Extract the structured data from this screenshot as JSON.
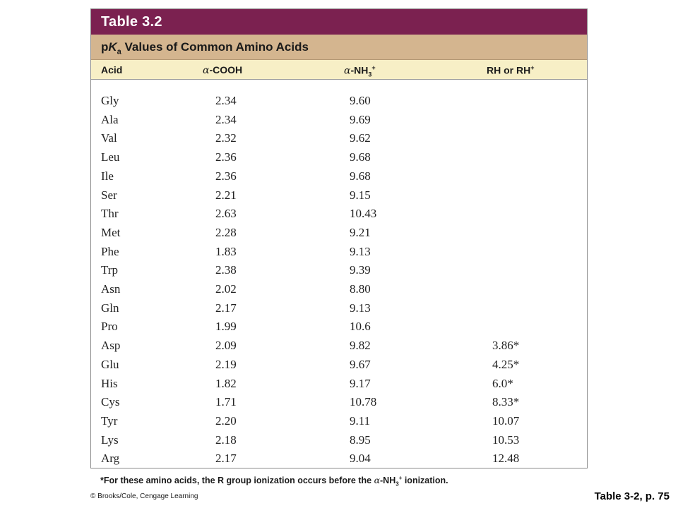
{
  "table": {
    "number": "Table 3.2",
    "subtitle_prefix": "p",
    "subtitle_k": "K",
    "subtitle_sub": "a",
    "subtitle_rest": " Values of Common Amino Acids",
    "headers": {
      "acid": "Acid",
      "cooh_greek": "α",
      "cooh_rest": "-COOH",
      "nh3_greek": "α",
      "nh3_rest": "-NH",
      "nh3_sub": "3",
      "nh3_sup": "+",
      "rh_text": "RH or RH",
      "rh_sup": "+"
    },
    "rows": [
      {
        "acid": "Gly",
        "cooh": "2.34",
        "nh3": "9.60",
        "rh": ""
      },
      {
        "acid": "Ala",
        "cooh": "2.34",
        "nh3": "9.69",
        "rh": ""
      },
      {
        "acid": "Val",
        "cooh": "2.32",
        "nh3": "9.62",
        "rh": ""
      },
      {
        "acid": "Leu",
        "cooh": "2.36",
        "nh3": "9.68",
        "rh": ""
      },
      {
        "acid": "Ile",
        "cooh": "2.36",
        "nh3": "9.68",
        "rh": ""
      },
      {
        "acid": "Ser",
        "cooh": "2.21",
        "nh3": "9.15",
        "rh": ""
      },
      {
        "acid": "Thr",
        "cooh": "2.63",
        "nh3": "10.43",
        "rh": ""
      },
      {
        "acid": "Met",
        "cooh": "2.28",
        "nh3": "9.21",
        "rh": ""
      },
      {
        "acid": "Phe",
        "cooh": "1.83",
        "nh3": "9.13",
        "rh": ""
      },
      {
        "acid": "Trp",
        "cooh": "2.38",
        "nh3": "9.39",
        "rh": ""
      },
      {
        "acid": "Asn",
        "cooh": "2.02",
        "nh3": "8.80",
        "rh": ""
      },
      {
        "acid": "Gln",
        "cooh": "2.17",
        "nh3": "9.13",
        "rh": ""
      },
      {
        "acid": "Pro",
        "cooh": "1.99",
        "nh3": "10.6",
        "rh": ""
      },
      {
        "acid": "Asp",
        "cooh": "2.09",
        "nh3": "9.82",
        "rh": "3.86*"
      },
      {
        "acid": "Glu",
        "cooh": "2.19",
        "nh3": "9.67",
        "rh": "4.25*"
      },
      {
        "acid": "His",
        "cooh": "1.82",
        "nh3": "9.17",
        "rh": "6.0*"
      },
      {
        "acid": "Cys",
        "cooh": "1.71",
        "nh3": "10.78",
        "rh": "8.33*"
      },
      {
        "acid": "Tyr",
        "cooh": "2.20",
        "nh3": "9.11",
        "rh": "10.07"
      },
      {
        "acid": "Lys",
        "cooh": "2.18",
        "nh3": "8.95",
        "rh": "10.53"
      },
      {
        "acid": "Arg",
        "cooh": "2.17",
        "nh3": "9.04",
        "rh": "12.48"
      }
    ]
  },
  "footnote": {
    "before": "*For these amino acids, the R group ionization occurs before the ",
    "greek": "α",
    "mid": "-NH",
    "sub": "3",
    "sup": "+",
    "after": " ionization."
  },
  "copyright": "© Brooks/Cole, Cengage Learning",
  "caption": "Table 3-2, p. 75",
  "colors": {
    "title_bar": "#7b2150",
    "subtitle_bar": "#d4b58f",
    "header_bar": "#f7efc6"
  }
}
